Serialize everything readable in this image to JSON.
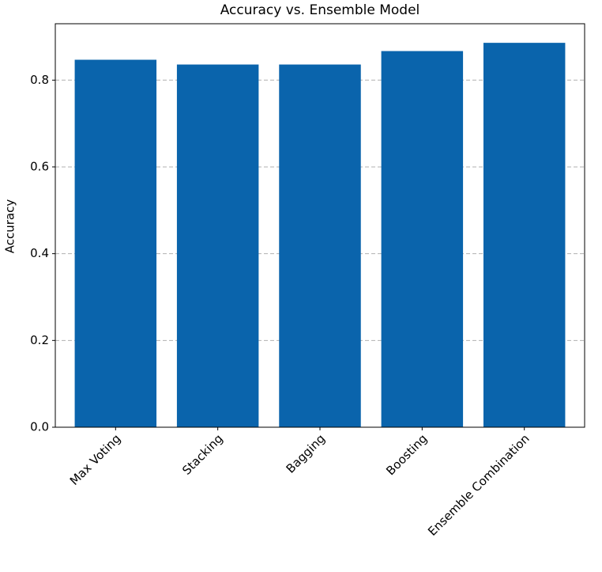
{
  "chart_data": {
    "type": "bar",
    "title": "Accuracy vs. Ensemble Model",
    "y_label": "Accuracy",
    "categories": [
      "Max Voting",
      "Stacking",
      "Bagging",
      "Boosting",
      "Ensemble Combination"
    ],
    "values": [
      0.847,
      0.836,
      0.836,
      0.867,
      0.886
    ],
    "color": "#0a64ac",
    "ylim": [
      0,
      0.93
    ],
    "yticks": [
      {
        "value": 0,
        "label": "0.0"
      },
      0.2,
      0.4,
      0.6,
      0.8
    ],
    "grid": true
  }
}
